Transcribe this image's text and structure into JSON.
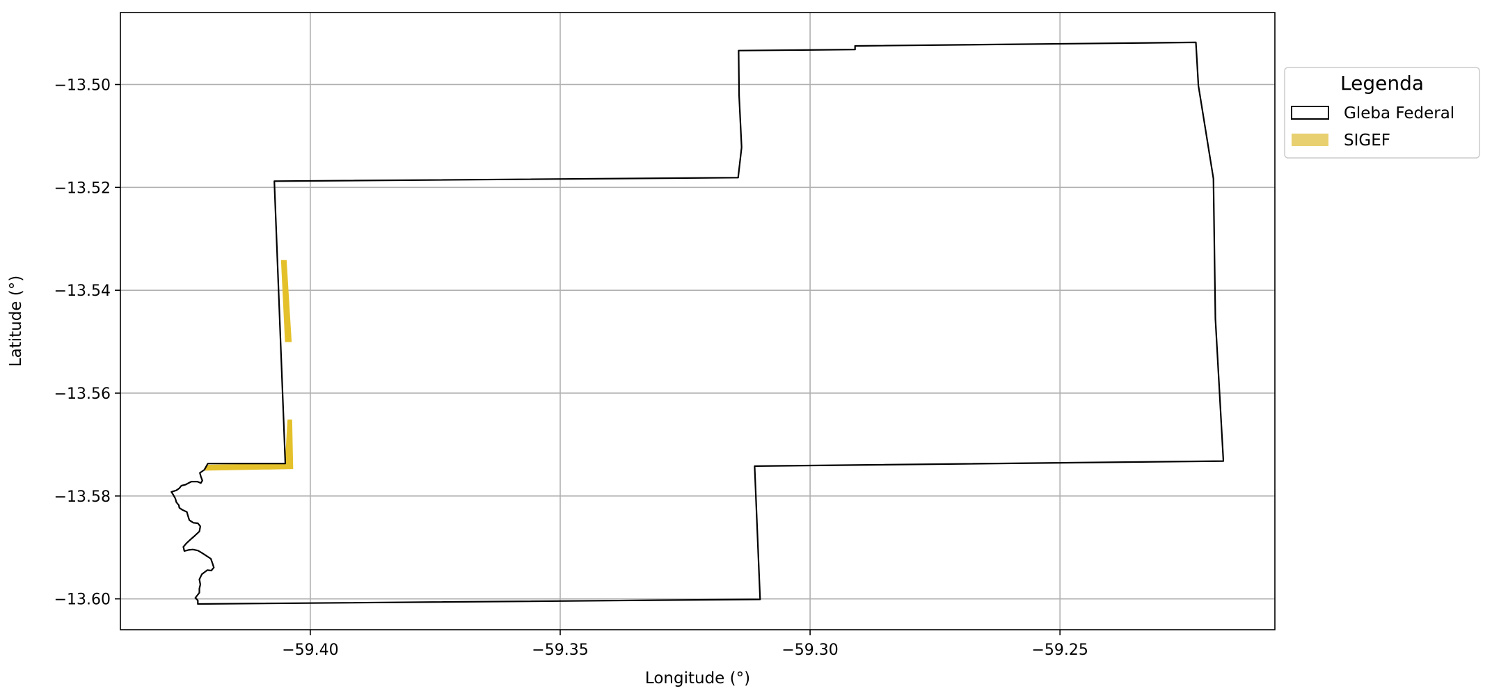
{
  "chart_data": {
    "type": "map",
    "xlabel": "Longitude (°)",
    "ylabel": "Latitude (°)",
    "xlim": [
      -59.438,
      -59.207
    ],
    "ylim": [
      -13.606,
      -13.486
    ],
    "grid": true,
    "x_ticks": [
      -59.4,
      -59.35,
      -59.3,
      -59.25
    ],
    "x_tick_labels": [
      "−59.40",
      "−59.35",
      "−59.30",
      "−59.25"
    ],
    "y_ticks": [
      -13.5,
      -13.52,
      -13.54,
      -13.56,
      -13.58,
      -13.6
    ],
    "y_tick_labels": [
      "−13.50",
      "−13.52",
      "−13.54",
      "−13.56",
      "−13.58",
      "−13.60"
    ],
    "legend": {
      "title": "Legenda",
      "placement": "outside-right-top",
      "entries": [
        {
          "label": "Gleba Federal",
          "style": "outline",
          "color": "#000000"
        },
        {
          "label": "SIGEF",
          "style": "fill",
          "color": "#e8d070"
        }
      ]
    },
    "layers": [
      {
        "name": "Gleba Federal",
        "style": "outline",
        "stroke": "#000000",
        "coordinates": [
          [
            -59.4072,
            -13.5188
          ],
          [
            -59.3144,
            -13.5181
          ],
          [
            -59.3137,
            -13.5122
          ],
          [
            -59.3142,
            -13.5022
          ],
          [
            -59.3143,
            -13.4934
          ],
          [
            -59.291,
            -13.4932
          ],
          [
            -59.291,
            -13.4925
          ],
          [
            -59.2228,
            -13.4918
          ],
          [
            -59.2223,
            -13.5002
          ],
          [
            -59.2193,
            -13.5183
          ],
          [
            -59.2189,
            -13.5455
          ],
          [
            -59.2173,
            -13.5732
          ],
          [
            -59.3111,
            -13.5742
          ],
          [
            -59.31,
            -13.6001
          ],
          [
            -59.4225,
            -13.601
          ],
          [
            -59.4225,
            -13.6003
          ],
          [
            -59.423,
            -13.5998
          ],
          [
            -59.4226,
            -13.5993
          ],
          [
            -59.4222,
            -13.5988
          ],
          [
            -59.4222,
            -13.598
          ],
          [
            -59.422,
            -13.5972
          ],
          [
            -59.4222,
            -13.5962
          ],
          [
            -59.4217,
            -13.5952
          ],
          [
            -59.4206,
            -13.5944
          ],
          [
            -59.4198,
            -13.5945
          ],
          [
            -59.4193,
            -13.5939
          ],
          [
            -59.4196,
            -13.593
          ],
          [
            -59.4199,
            -13.5922
          ],
          [
            -59.421,
            -13.5915
          ],
          [
            -59.4218,
            -13.591
          ],
          [
            -59.4225,
            -13.5906
          ],
          [
            -59.4235,
            -13.5904
          ],
          [
            -59.4244,
            -13.5905
          ],
          [
            -59.4252,
            -13.5907
          ],
          [
            -59.4254,
            -13.5899
          ],
          [
            -59.4248,
            -13.5892
          ],
          [
            -59.424,
            -13.5885
          ],
          [
            -59.4232,
            -13.5878
          ],
          [
            -59.4222,
            -13.5869
          ],
          [
            -59.422,
            -13.5859
          ],
          [
            -59.4225,
            -13.5853
          ],
          [
            -59.4234,
            -13.5852
          ],
          [
            -59.4242,
            -13.5847
          ],
          [
            -59.4245,
            -13.5838
          ],
          [
            -59.4247,
            -13.5831
          ],
          [
            -59.4256,
            -13.5827
          ],
          [
            -59.4262,
            -13.5823
          ],
          [
            -59.4263,
            -13.5818
          ],
          [
            -59.4268,
            -13.5812
          ],
          [
            -59.427,
            -13.5805
          ],
          [
            -59.4274,
            -13.5798
          ],
          [
            -59.4278,
            -13.5792
          ],
          [
            -59.4268,
            -13.5789
          ],
          [
            -59.4262,
            -13.5785
          ],
          [
            -59.4258,
            -13.578
          ],
          [
            -59.425,
            -13.5778
          ],
          [
            -59.4238,
            -13.5772
          ],
          [
            -59.4226,
            -13.5772
          ],
          [
            -59.4219,
            -13.5775
          ],
          [
            -59.4216,
            -13.577
          ],
          [
            -59.4219,
            -13.5762
          ],
          [
            -59.4221,
            -13.5755
          ],
          [
            -59.4212,
            -13.5749
          ],
          [
            -59.4205,
            -13.5737
          ],
          [
            -59.405,
            -13.5737
          ],
          [
            -59.4072,
            -13.5188
          ]
        ]
      },
      {
        "name": "SIGEF",
        "style": "fill",
        "fill": "#e4c12b",
        "polygons": [
          [
            [
              -59.4058,
              -13.5342
            ],
            [
              -59.4048,
              -13.5342
            ],
            [
              -59.4038,
              -13.55
            ],
            [
              -59.405,
              -13.55
            ]
          ],
          [
            [
              -59.4045,
              -13.5652
            ],
            [
              -59.4037,
              -13.5652
            ],
            [
              -59.4035,
              -13.5747
            ],
            [
              -59.421,
              -13.575
            ],
            [
              -59.4208,
              -13.574
            ],
            [
              -59.405,
              -13.5737
            ]
          ]
        ]
      }
    ]
  }
}
